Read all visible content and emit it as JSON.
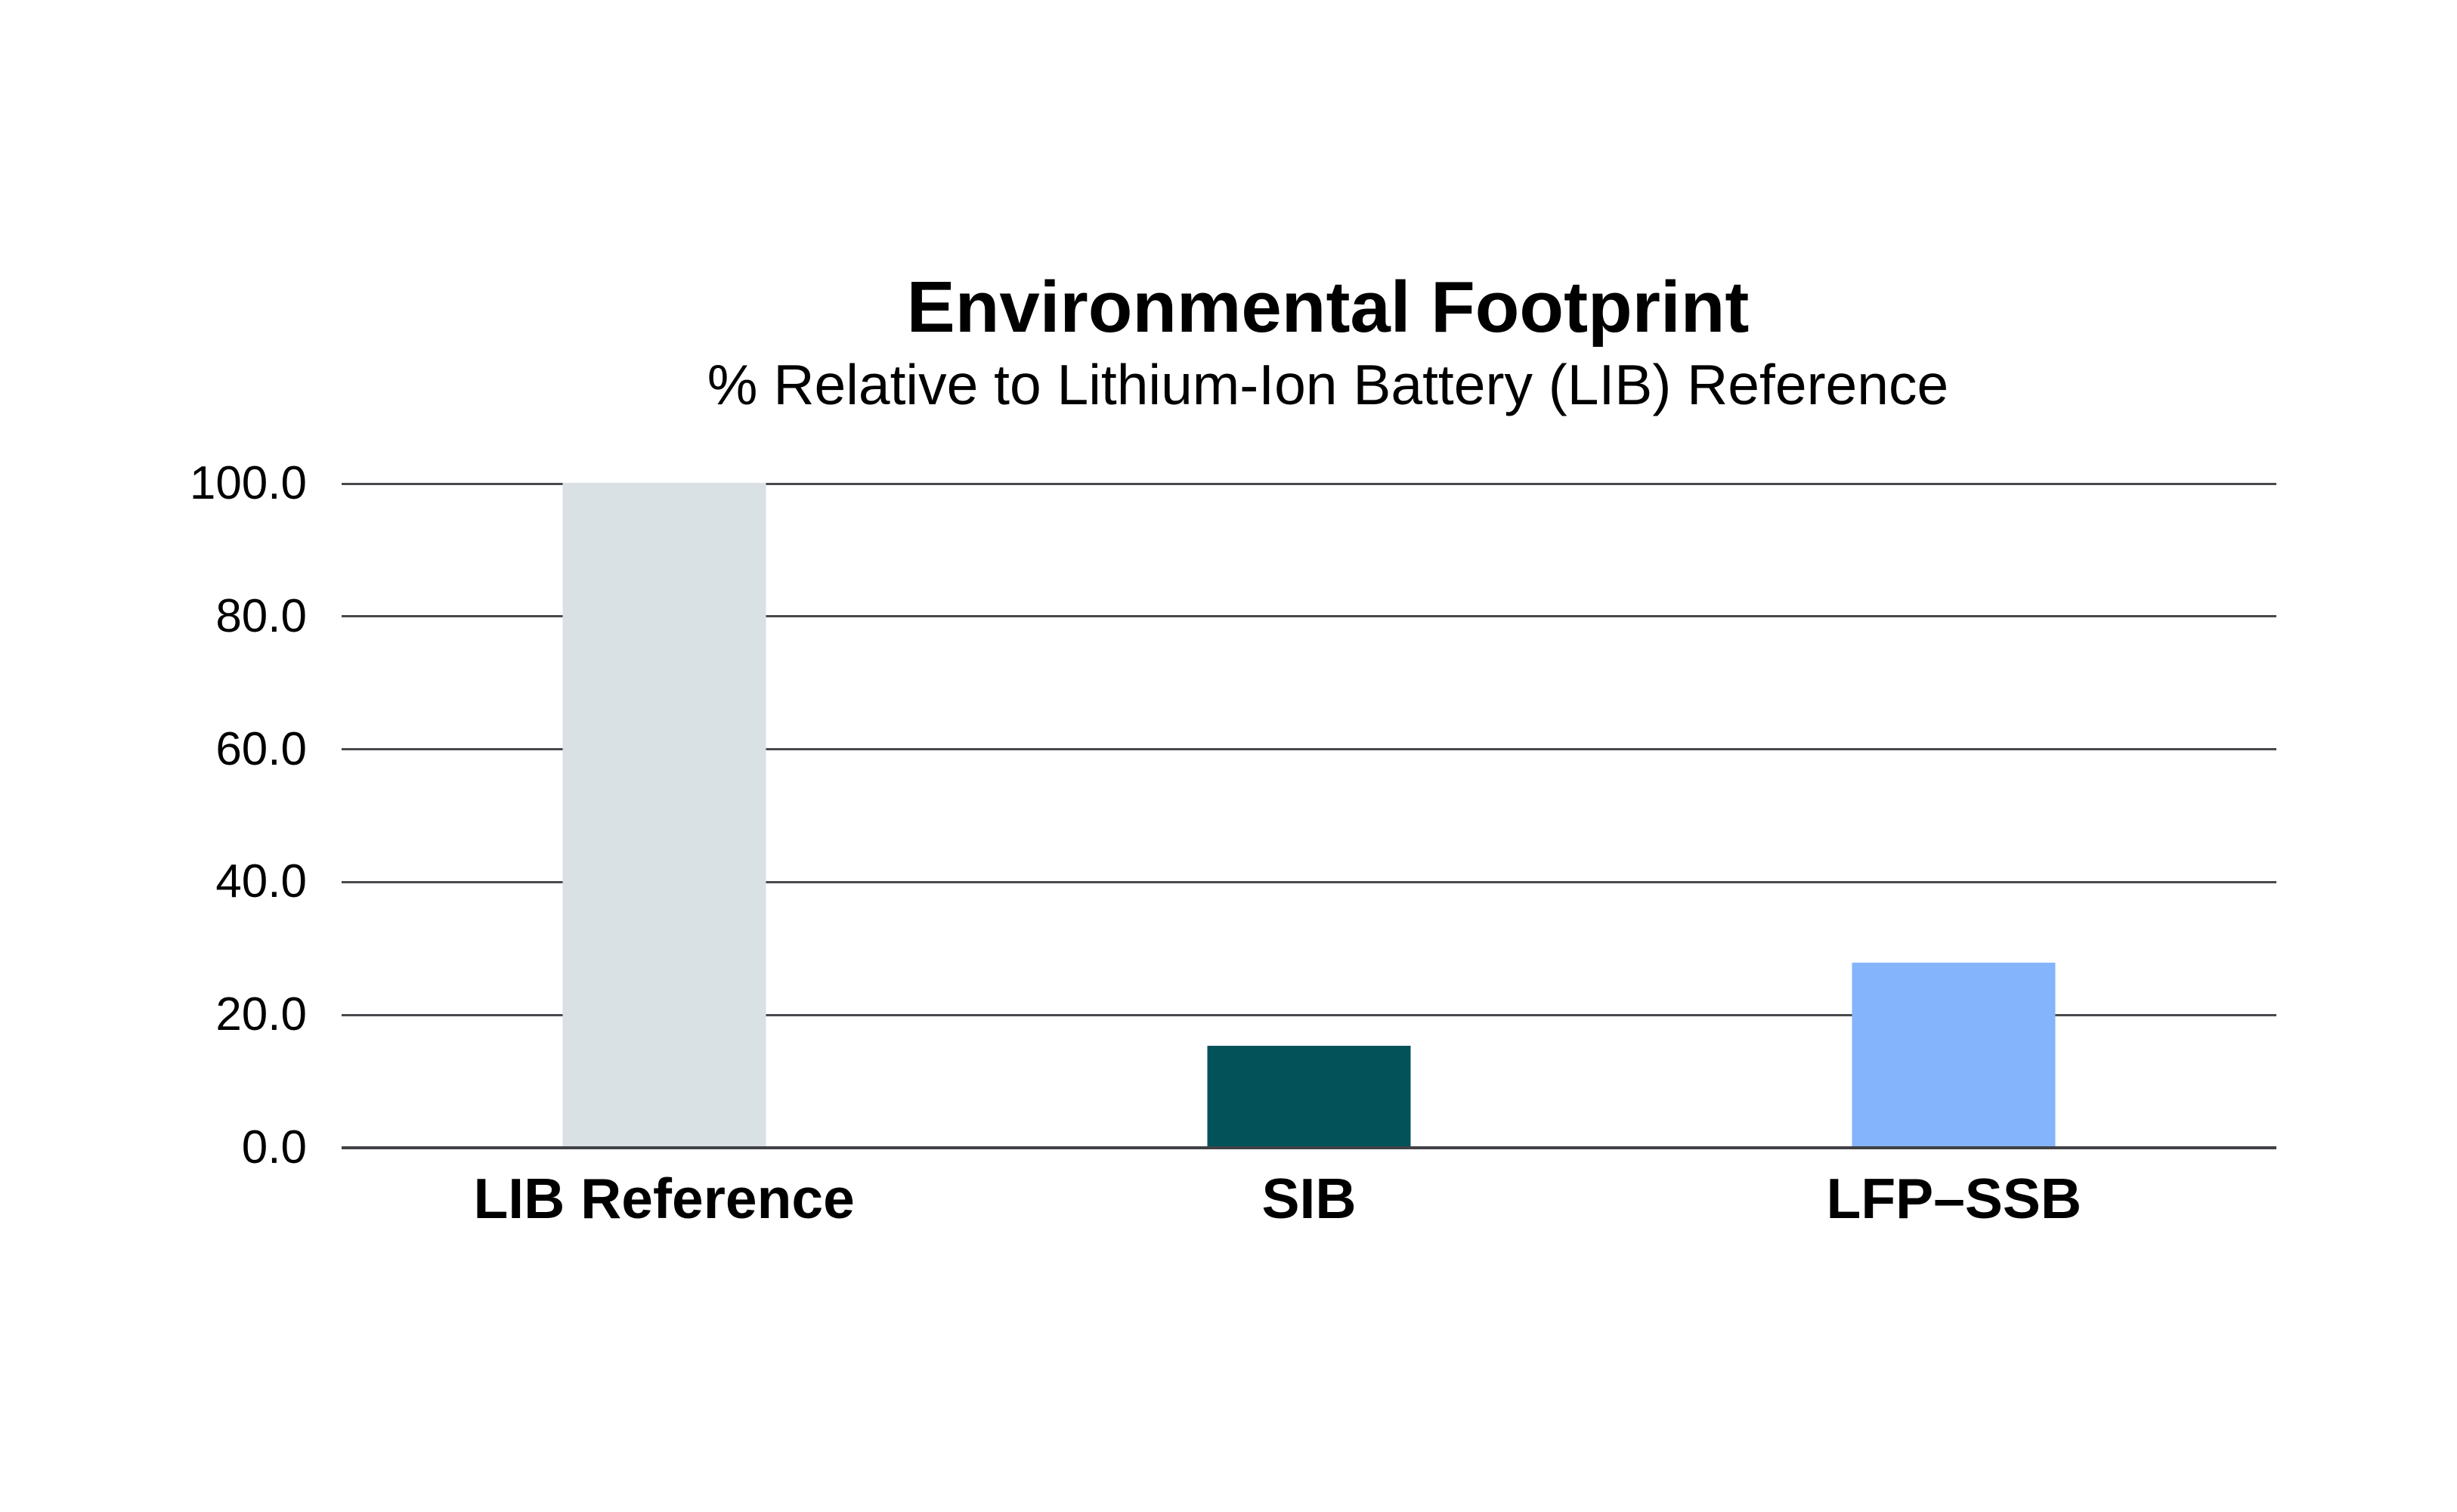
{
  "chart_data": {
    "type": "bar",
    "title": "Environmental Footprint",
    "subtitle": "% Relative to Lithium-Ion Battery (LIB) Reference",
    "categories": [
      "LIB Reference",
      "SIB",
      "LFP–SSB"
    ],
    "values": [
      100.0,
      15.3,
      27.8
    ],
    "colors": [
      "#dae1e5",
      "#03525a",
      "#84b4fb"
    ],
    "ylim": [
      0,
      100
    ],
    "yticks": [
      100,
      80,
      60,
      40,
      20,
      0
    ],
    "ytick_labels": [
      "100.0",
      "80.0",
      "60.0",
      "40.0",
      "20.0",
      "0.0"
    ],
    "xlabel": "",
    "ylabel": "",
    "grid": true,
    "legend": false,
    "background_color": "#ffffff",
    "gridline_color": "#47494c",
    "text_color": "#000000"
  }
}
